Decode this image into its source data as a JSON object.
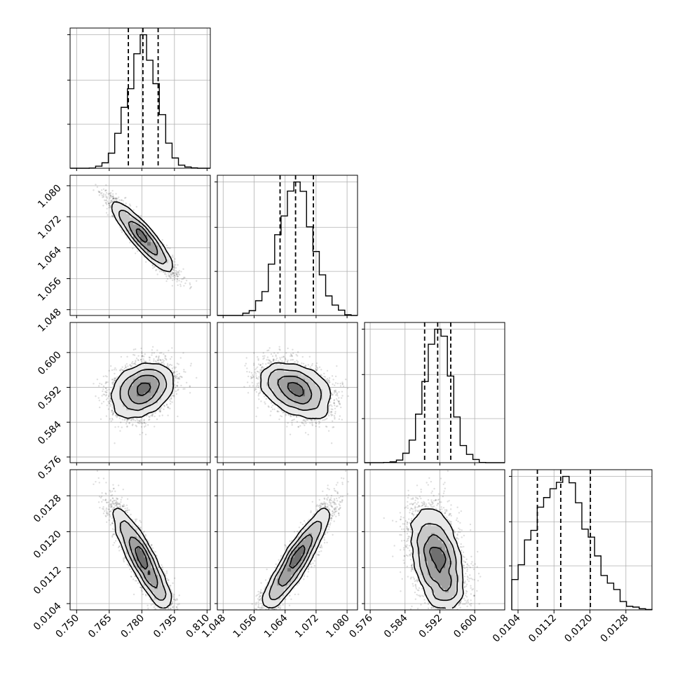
{
  "chart_data": {
    "type": "scatter",
    "subtype": "corner-plot",
    "grid": true,
    "parameters": [
      {
        "index": 0,
        "median": 0.7805,
        "q16": 0.7738,
        "q84": 0.7875,
        "std": 0.0068,
        "range": [
          0.747,
          0.8115
        ],
        "ticks": [
          0.75,
          0.765,
          0.78,
          0.795,
          0.81
        ],
        "tick_labels": [
          "0.750",
          "0.765",
          "0.780",
          "0.795",
          "0.810"
        ]
      },
      {
        "index": 1,
        "median": 1.0667,
        "q16": 1.0627,
        "q84": 1.0713,
        "std": 0.0044,
        "range": [
          1.0465,
          1.0827
        ],
        "ticks": [
          1.048,
          1.056,
          1.064,
          1.072,
          1.08
        ],
        "tick_labels": [
          "1.048",
          "1.056",
          "1.064",
          "1.072",
          "1.080"
        ]
      },
      {
        "index": 2,
        "median": 0.5915,
        "q16": 0.5885,
        "q84": 0.5945,
        "std": 0.003,
        "range": [
          0.5747,
          0.6069
        ],
        "ticks": [
          0.576,
          0.584,
          0.592,
          0.6
        ],
        "tick_labels": [
          "0.576",
          "0.584",
          "0.592",
          "0.600"
        ]
      },
      {
        "index": 3,
        "median": 0.01135,
        "q16": 0.01083,
        "q84": 0.01201,
        "std": 0.00059,
        "range": [
          0.01026,
          0.01338
        ],
        "ticks": [
          0.0104,
          0.0112,
          0.012,
          0.0128
        ],
        "tick_labels": [
          "0.0104",
          "0.0112",
          "0.0120",
          "0.0128"
        ]
      }
    ],
    "correlations": [
      {
        "pair": [
          0,
          1
        ],
        "rho": -0.93
      },
      {
        "pair": [
          0,
          2
        ],
        "rho": 0.3
      },
      {
        "pair": [
          1,
          2
        ],
        "rho": -0.4
      },
      {
        "pair": [
          0,
          3
        ],
        "rho": -0.9
      },
      {
        "pair": [
          1,
          3
        ],
        "rho": 0.92
      },
      {
        "pair": [
          2,
          3
        ],
        "rho": -0.4
      }
    ]
  },
  "colors": {
    "axes": "#000000",
    "grid": "#b0b0b0",
    "scatter_points": "#000000",
    "contour_lines": "#000000",
    "density_fill": "#000000",
    "quantile_lines": "#000000"
  }
}
